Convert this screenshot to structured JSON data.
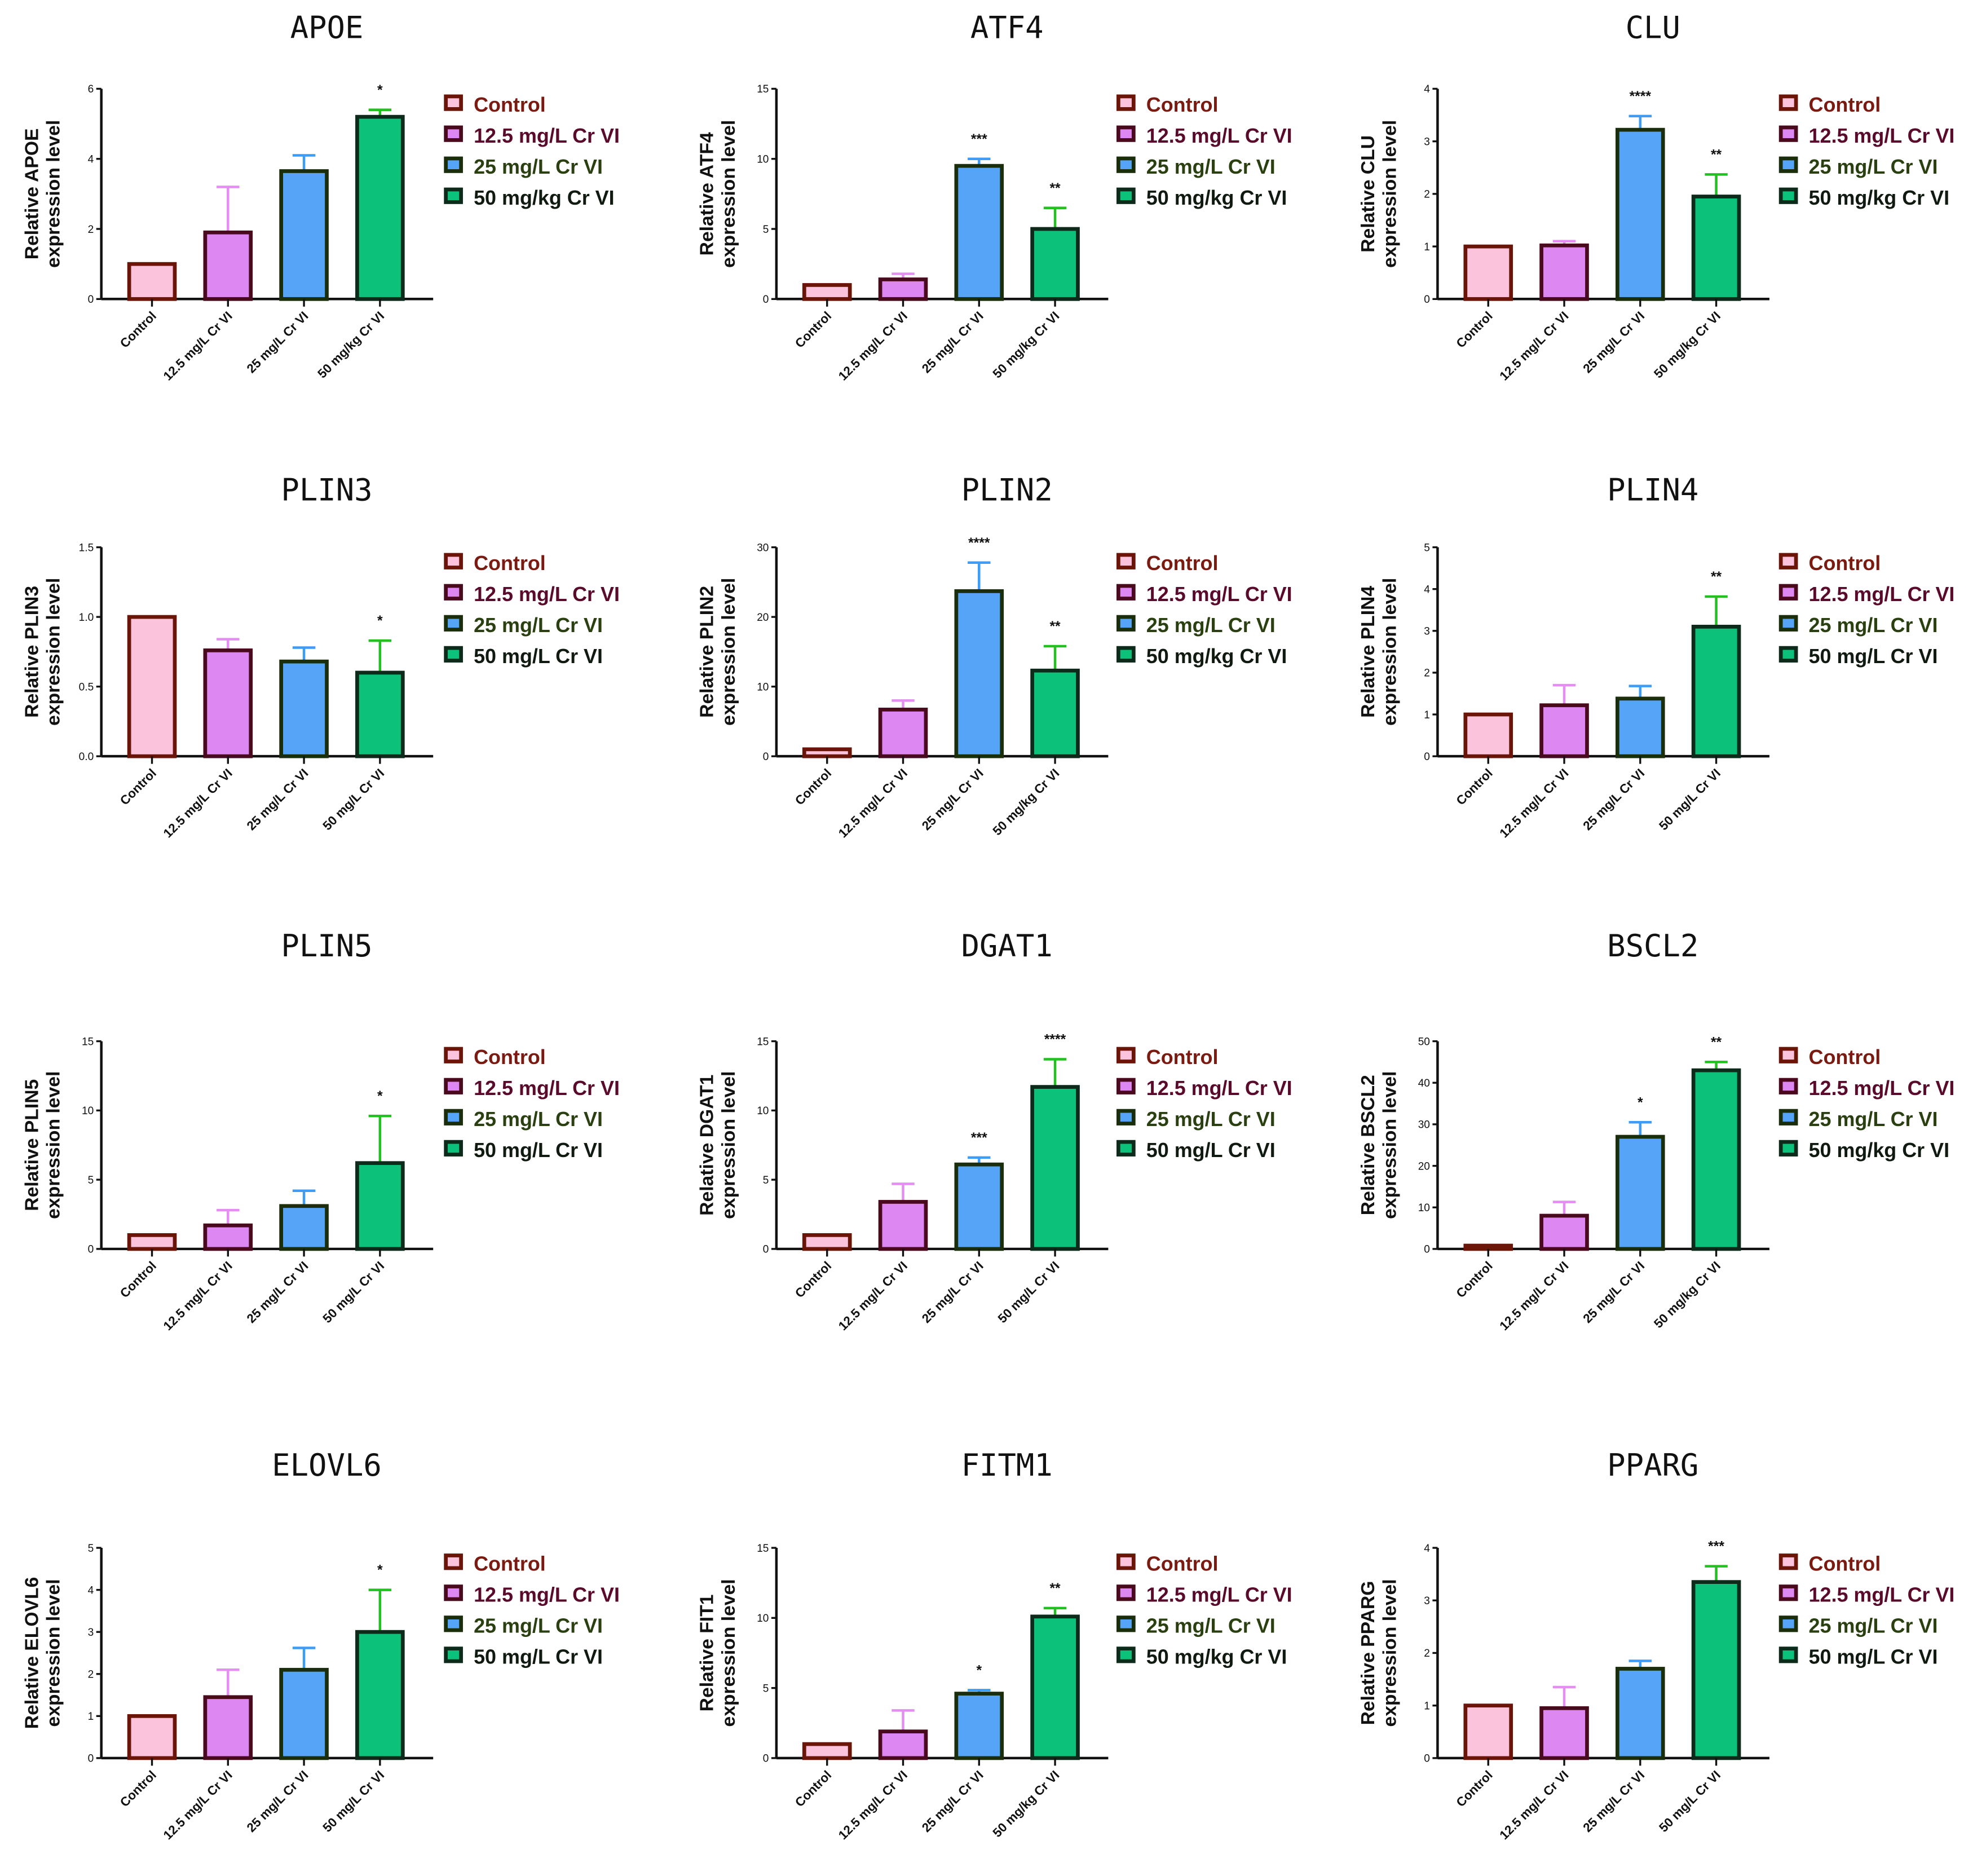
{
  "colors": {
    "fills": [
      "#fbc3dc",
      "#dd88f2",
      "#55a4f8",
      "#0cc27a"
    ],
    "borders": [
      "#6b1408",
      "#4a0a1e",
      "#1b2e0c",
      "#0d2a1a"
    ],
    "errors": [
      "#fbc3dc",
      "#e48ef2",
      "#3c9cf8",
      "#22c020"
    ],
    "legend_text": [
      "#7a1a10",
      "#5a0a2a",
      "#2a4010",
      "#101a10"
    ]
  },
  "chart_data": [
    {
      "type": "bar",
      "title": "APOE",
      "ylabel": [
        "Relative  APOE",
        "expression level"
      ],
      "ylim": [
        0,
        6
      ],
      "yticks": [
        "0",
        "2",
        "4",
        "6"
      ],
      "categories": [
        "Control",
        "12.5 mg/L Cr VI",
        "25 mg/L Cr VI",
        "50 mg/kg Cr VI"
      ],
      "legend": [
        "Control",
        "12.5 mg/L Cr VI",
        "25 mg/L Cr VI",
        "50 mg/kg Cr VI"
      ],
      "values": [
        1.0,
        1.9,
        3.65,
        5.2
      ],
      "error_upper": [
        1.0,
        3.2,
        4.1,
        5.4
      ],
      "significance": [
        "",
        "",
        "",
        "*"
      ]
    },
    {
      "type": "bar",
      "title": "ATF4",
      "ylabel": [
        "Relative  ATF4",
        "expression level"
      ],
      "ylim": [
        0,
        15
      ],
      "yticks": [
        "0",
        "5",
        "10",
        "15"
      ],
      "categories": [
        "Control",
        "12.5 mg/L Cr VI",
        "25 mg/L Cr VI",
        "50 mg/kg Cr VI"
      ],
      "legend": [
        "Control",
        "12.5 mg/L Cr VI",
        "25 mg/L Cr VI",
        "50 mg/kg Cr VI"
      ],
      "values": [
        1.0,
        1.4,
        9.5,
        5.0
      ],
      "error_upper": [
        1.0,
        1.8,
        10.0,
        6.5
      ],
      "significance": [
        "",
        "",
        "***",
        "**"
      ]
    },
    {
      "type": "bar",
      "title": "CLU",
      "ylabel": [
        "Relative  CLU",
        "expression level"
      ],
      "ylim": [
        0,
        4
      ],
      "yticks": [
        "0",
        "1",
        "2",
        "3",
        "4"
      ],
      "categories": [
        "Control",
        "12.5 mg/L Cr VI",
        "25 mg/L Cr VI",
        "50 mg/kg Cr VI"
      ],
      "legend": [
        "Control",
        "12.5 mg/L Cr VI",
        "25 mg/L Cr VI",
        "50 mg/kg Cr VI"
      ],
      "values": [
        1.0,
        1.02,
        3.22,
        1.95
      ],
      "error_upper": [
        1.0,
        1.1,
        3.48,
        2.37
      ],
      "significance": [
        "",
        "",
        "****",
        "**"
      ]
    },
    {
      "type": "bar",
      "title": "PLIN3",
      "ylabel": [
        "Relative  PLIN3",
        "expression level"
      ],
      "ylim": [
        0,
        1.5
      ],
      "yticks": [
        "0.0",
        "0.5",
        "1.0",
        "1.5"
      ],
      "categories": [
        "Control",
        "12.5 mg/L Cr VI",
        "25 mg/L Cr VI",
        "50 mg/L Cr VI"
      ],
      "legend": [
        "Control",
        "12.5 mg/L Cr VI",
        "25 mg/L Cr VI",
        "50 mg/L Cr VI"
      ],
      "values": [
        1.0,
        0.76,
        0.68,
        0.6
      ],
      "error_upper": [
        1.0,
        0.84,
        0.78,
        0.83
      ],
      "significance": [
        "",
        "",
        "",
        "*"
      ]
    },
    {
      "type": "bar",
      "title": "PLIN2",
      "ylabel": [
        "Relative  PLIN2",
        "expression level"
      ],
      "ylim": [
        0,
        30
      ],
      "yticks": [
        "0",
        "10",
        "20",
        "30"
      ],
      "categories": [
        "Control",
        "12.5 mg/L Cr VI",
        "25 mg/L Cr VI",
        "50 mg/kg Cr VI"
      ],
      "legend": [
        "Control",
        "12.5 mg/L Cr VI",
        "25 mg/L Cr VI",
        "50 mg/kg Cr VI"
      ],
      "values": [
        1.0,
        6.7,
        23.7,
        12.3
      ],
      "error_upper": [
        1.0,
        8.0,
        27.8,
        15.8
      ],
      "significance": [
        "",
        "",
        "****",
        "**"
      ]
    },
    {
      "type": "bar",
      "title": "PLIN4",
      "ylabel": [
        "Relative  PLIN4",
        "expression level"
      ],
      "ylim": [
        0,
        5
      ],
      "yticks": [
        "0",
        "1",
        "2",
        "3",
        "4",
        "5"
      ],
      "categories": [
        "Control",
        "12.5 mg/L Cr VI",
        "25 mg/L Cr VI",
        "50 mg/L Cr VI"
      ],
      "legend": [
        "Control",
        "12.5 mg/L Cr VI",
        "25 mg/L Cr VI",
        "50 mg/L Cr VI"
      ],
      "values": [
        1.0,
        1.22,
        1.38,
        3.1
      ],
      "error_upper": [
        1.0,
        1.7,
        1.68,
        3.82
      ],
      "significance": [
        "",
        "",
        "",
        "**"
      ]
    },
    {
      "type": "bar",
      "title": "PLIN5",
      "ylabel": [
        "Relative  PLIN5",
        "expression level"
      ],
      "ylim": [
        0,
        15
      ],
      "yticks": [
        "0",
        "5",
        "10",
        "15"
      ],
      "categories": [
        "Control",
        "12.5 mg/L Cr VI",
        "25 mg/L Cr VI",
        "50 mg/L Cr VI"
      ],
      "legend": [
        "Control",
        "12.5 mg/L Cr VI",
        "25 mg/L Cr VI",
        "50 mg/L Cr VI"
      ],
      "values": [
        1.0,
        1.7,
        3.1,
        6.2
      ],
      "error_upper": [
        1.0,
        2.8,
        4.2,
        9.6
      ],
      "significance": [
        "",
        "",
        "",
        "*"
      ]
    },
    {
      "type": "bar",
      "title": "DGAT1",
      "ylabel": [
        "Relative  DGAT1",
        "expression level"
      ],
      "ylim": [
        0,
        15
      ],
      "yticks": [
        "0",
        "5",
        "10",
        "15"
      ],
      "categories": [
        "Control",
        "12.5 mg/L Cr VI",
        "25 mg/L Cr VI",
        "50 mg/L Cr VI"
      ],
      "legend": [
        "Control",
        "12.5 mg/L Cr VI",
        "25 mg/L Cr VI",
        "50 mg/L Cr VI"
      ],
      "values": [
        1.0,
        3.4,
        6.1,
        11.7
      ],
      "error_upper": [
        1.0,
        4.7,
        6.6,
        13.7
      ],
      "significance": [
        "",
        "",
        "***",
        "****"
      ]
    },
    {
      "type": "bar",
      "title": "BSCL2",
      "ylabel": [
        "Relative  BSCL2",
        "expression level"
      ],
      "ylim": [
        0,
        50
      ],
      "yticks": [
        "0",
        "10",
        "20",
        "30",
        "40",
        "50"
      ],
      "categories": [
        "Control",
        "12.5 mg/L Cr VI",
        "25 mg/L Cr VI",
        "50 mg/kg Cr VI"
      ],
      "legend": [
        "Control",
        "12.5 mg/L Cr VI",
        "25 mg/L Cr VI",
        "50 mg/kg Cr VI"
      ],
      "values": [
        0.8,
        8.0,
        27.0,
        43.0
      ],
      "error_upper": [
        0.8,
        11.3,
        30.5,
        45.0
      ],
      "significance": [
        "",
        "",
        "*",
        "**"
      ]
    },
    {
      "type": "bar",
      "title": "ELOVL6",
      "ylabel": [
        "Relative  ELOVL6",
        "expression level"
      ],
      "ylim": [
        0,
        5
      ],
      "yticks": [
        "0",
        "1",
        "2",
        "3",
        "4",
        "5"
      ],
      "categories": [
        "Control",
        "12.5 mg/L Cr VI",
        "25 mg/L Cr VI",
        "50 mg/L Cr VI"
      ],
      "legend": [
        "Control",
        "12.5 mg/L Cr VI",
        "25 mg/L Cr VI",
        "50 mg/L Cr VI"
      ],
      "values": [
        1.0,
        1.45,
        2.1,
        3.0
      ],
      "error_upper": [
        1.0,
        2.1,
        2.62,
        4.0
      ],
      "significance": [
        "",
        "",
        "",
        "*"
      ]
    },
    {
      "type": "bar",
      "title": "FITM1",
      "ylabel": [
        "Relative  FIT1",
        "expression level"
      ],
      "ylim": [
        0,
        15
      ],
      "yticks": [
        "0",
        "5",
        "10",
        "15"
      ],
      "categories": [
        "Control",
        "12.5 mg/L Cr VI",
        "25 mg/L Cr VI",
        "50 mg/kg Cr VI"
      ],
      "legend": [
        "Control",
        "12.5 mg/L Cr VI",
        "25 mg/L Cr VI",
        "50 mg/kg Cr VI"
      ],
      "values": [
        1.0,
        1.9,
        4.6,
        10.1
      ],
      "error_upper": [
        1.0,
        3.4,
        4.85,
        10.7
      ],
      "significance": [
        "",
        "",
        "*",
        "**"
      ]
    },
    {
      "type": "bar",
      "title": "PPARG",
      "ylabel": [
        "Relative  PPARG",
        "expression level"
      ],
      "ylim": [
        0,
        4
      ],
      "yticks": [
        "0",
        "1",
        "2",
        "3",
        "4"
      ],
      "categories": [
        "Control",
        "12.5 mg/L Cr VI",
        "25 mg/L Cr VI",
        "50 mg/L Cr VI"
      ],
      "legend": [
        "Control",
        "12.5 mg/L Cr VI",
        "25 mg/L Cr VI",
        "50 mg/L Cr VI"
      ],
      "values": [
        1.0,
        0.95,
        1.7,
        3.35
      ],
      "error_upper": [
        1.0,
        1.35,
        1.85,
        3.65
      ],
      "significance": [
        "",
        "",
        "",
        "***"
      ]
    }
  ]
}
